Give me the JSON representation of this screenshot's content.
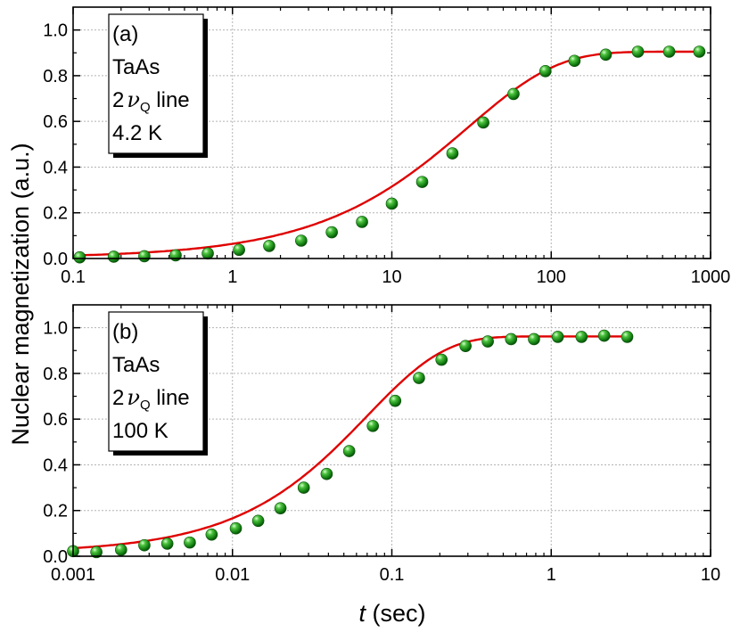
{
  "figure": {
    "ylabel": "Nuclear magnetization (a.u.)",
    "xlabel_italic": "t",
    "xlabel_rest": " (sec)"
  },
  "chart_data": [
    {
      "type": "scatter",
      "panel": "(a)",
      "annotation": {
        "panel": "(a)",
        "sample": "TaAs",
        "line_prefix": "2",
        "nu": "ν",
        "sub": "Q",
        "line_suffix": " line",
        "temperature": "4.2 K"
      },
      "xscale": "log",
      "xlim": [
        0.1,
        1000
      ],
      "ylim": [
        0,
        1.1
      ],
      "xticks": [
        0.1,
        1,
        10,
        100,
        1000
      ],
      "xtick_labels": [
        "0.1",
        "1",
        "10",
        "100",
        "1000"
      ],
      "yticks": [
        0,
        0.2,
        0.4,
        0.6,
        0.8,
        1.0
      ],
      "ytick_labels": [
        "0.0",
        "0.2",
        "0.4",
        "0.6",
        "0.8",
        "1.0"
      ],
      "grid": true,
      "marker_color": "#1a8c1a",
      "fit_color": "#e00000",
      "x": [
        0.11,
        0.18,
        0.28,
        0.44,
        0.7,
        1.1,
        1.7,
        2.7,
        4.2,
        6.5,
        10,
        15.5,
        24,
        37.5,
        58,
        92,
        140,
        220,
        350,
        550,
        850
      ],
      "y": [
        0.005,
        0.008,
        0.01,
        0.014,
        0.022,
        0.038,
        0.055,
        0.078,
        0.115,
        0.16,
        0.24,
        0.335,
        0.46,
        0.595,
        0.72,
        0.82,
        0.865,
        0.892,
        0.905,
        0.905,
        0.905
      ],
      "fit": {
        "A": 0.905,
        "B": 0.0028,
        "tau": 30,
        "exp": 0.78
      }
    },
    {
      "type": "scatter",
      "panel": "(b)",
      "annotation": {
        "panel": "(b)",
        "sample": "TaAs",
        "line_prefix": "2",
        "nu": "ν",
        "sub": "Q",
        "line_suffix": " line",
        "temperature": "100 K"
      },
      "xscale": "log",
      "xlim": [
        0.001,
        10
      ],
      "ylim": [
        0,
        1.1
      ],
      "xticks": [
        0.001,
        0.01,
        0.1,
        1,
        10
      ],
      "xtick_labels": [
        "0.001",
        "0.01",
        "0.1",
        "1",
        "10"
      ],
      "yticks": [
        0,
        0.2,
        0.4,
        0.6,
        0.8,
        1.0
      ],
      "ytick_labels": [
        "0.0",
        "0.2",
        "0.4",
        "0.6",
        "0.8",
        "1.0"
      ],
      "grid": true,
      "marker_color": "#1a8c1a",
      "fit_color": "#e00000",
      "x": [
        0.001,
        0.0014,
        0.002,
        0.0028,
        0.0039,
        0.0054,
        0.0074,
        0.0105,
        0.0145,
        0.02,
        0.028,
        0.039,
        0.054,
        0.076,
        0.105,
        0.148,
        0.205,
        0.29,
        0.4,
        0.56,
        0.78,
        1.1,
        1.55,
        2.15,
        3.0
      ],
      "y": [
        0.022,
        0.018,
        0.028,
        0.048,
        0.055,
        0.06,
        0.095,
        0.122,
        0.155,
        0.21,
        0.3,
        0.36,
        0.46,
        0.57,
        0.68,
        0.78,
        0.86,
        0.92,
        0.94,
        0.95,
        0.95,
        0.96,
        0.96,
        0.965,
        0.96
      ],
      "fit": {
        "A": 0.962,
        "B": 0.015,
        "tau": 0.07,
        "exp": 0.9
      }
    }
  ]
}
